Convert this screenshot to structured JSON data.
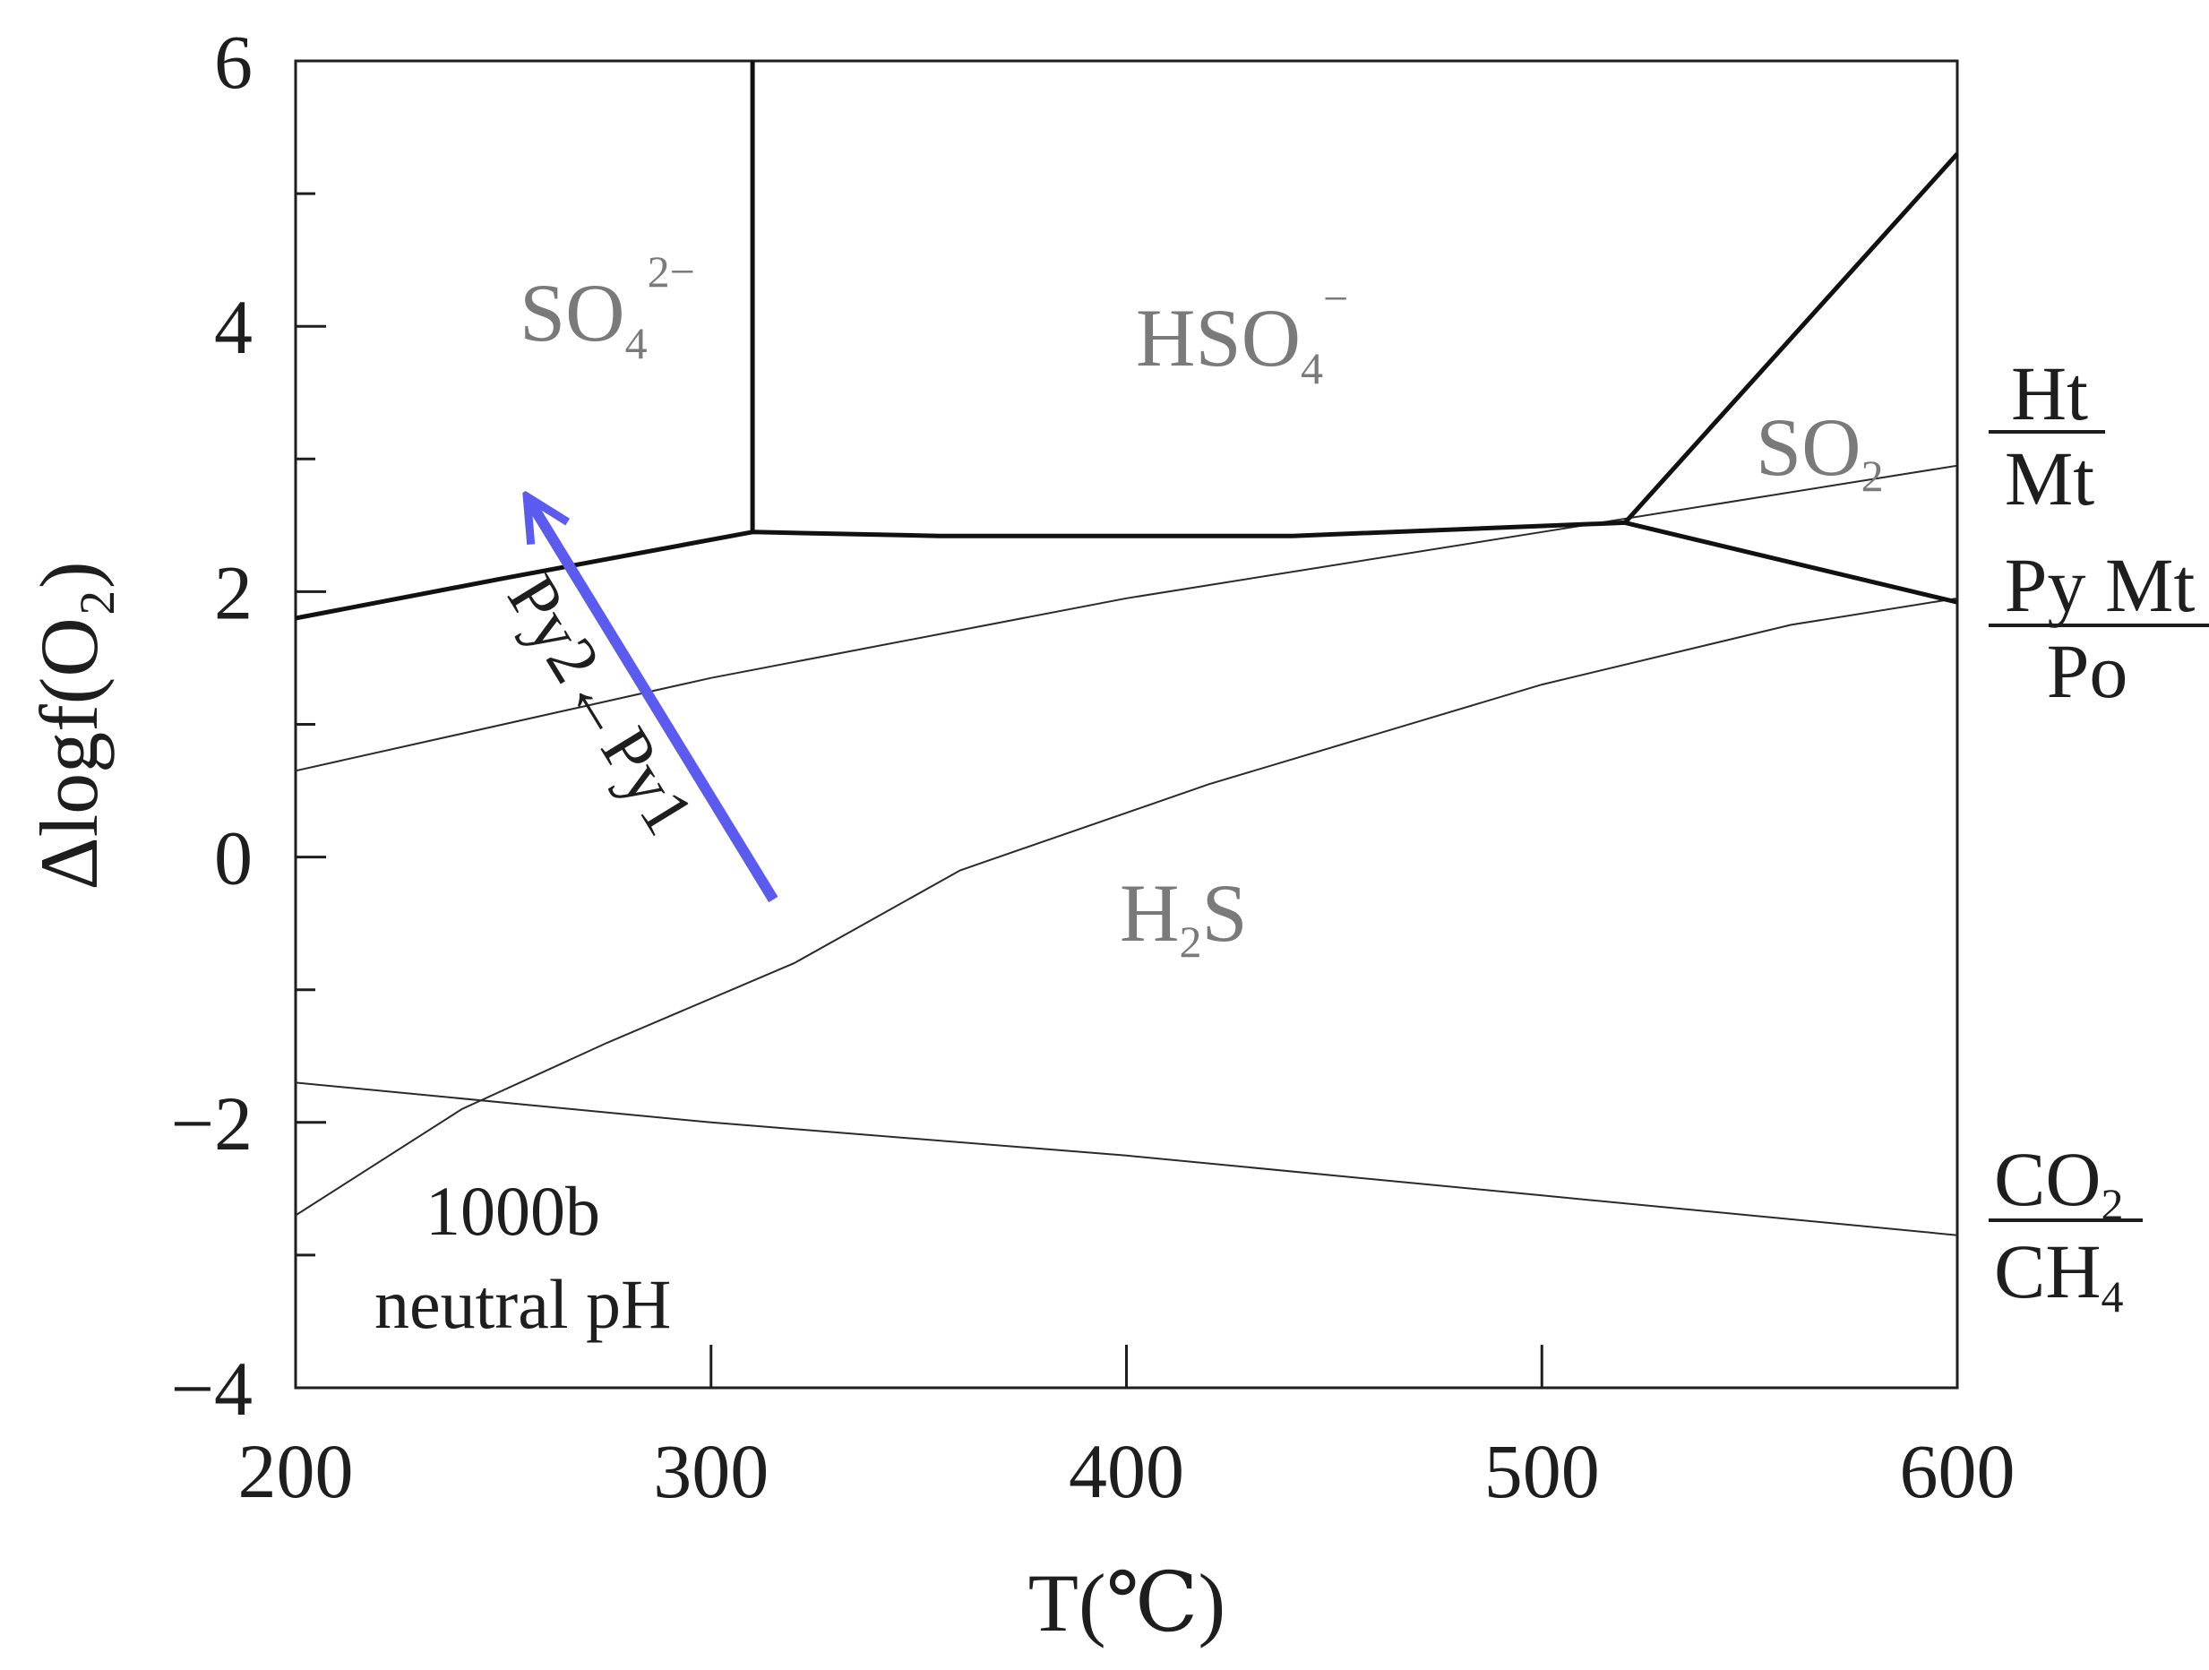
{
  "chart_data": {
    "type": "line",
    "title": "",
    "xlabel": "T(℃)",
    "ylabel": "Δlogf(O₂)",
    "xlim": [
      200,
      600
    ],
    "ylim": [
      -4,
      6
    ],
    "x_ticks": [
      200,
      300,
      400,
      500,
      600
    ],
    "y_ticks": [
      -4,
      -2,
      0,
      2,
      4,
      6
    ],
    "x_tick_labels": [
      "200",
      "300",
      "400",
      "500",
      "600"
    ],
    "y_tick_labels": [
      "−4",
      "−2",
      "0",
      "2",
      "4",
      "6"
    ],
    "grid": false,
    "boundaries_thick": [
      {
        "points": [
          [
            200,
            1.8
          ],
          [
            250,
            2.1
          ],
          [
            310,
            2.45
          ],
          [
            355,
            2.42
          ],
          [
            440,
            2.42
          ],
          [
            520,
            2.52
          ]
        ]
      },
      {
        "points": [
          [
            310,
            2.45
          ],
          [
            310,
            6.0
          ]
        ]
      },
      {
        "points": [
          [
            520,
            2.52
          ],
          [
            600,
            5.3
          ]
        ]
      },
      {
        "points": [
          [
            520,
            2.52
          ],
          [
            600,
            1.92
          ]
        ]
      }
    ],
    "buffer_lines": [
      {
        "points": [
          [
            200,
            0.65
          ],
          [
            300,
            1.35
          ],
          [
            400,
            1.95
          ],
          [
            500,
            2.45
          ],
          [
            600,
            2.95
          ]
        ]
      },
      {
        "points": [
          [
            200,
            -2.7
          ],
          [
            240,
            -1.9
          ],
          [
            275,
            -1.4
          ],
          [
            320,
            -0.8
          ],
          [
            360,
            -0.1
          ],
          [
            420,
            0.55
          ],
          [
            500,
            1.3
          ],
          [
            560,
            1.75
          ],
          [
            600,
            1.95
          ]
        ]
      },
      {
        "points": [
          [
            200,
            -1.7
          ],
          [
            300,
            -2.0
          ],
          [
            400,
            -2.25
          ],
          [
            500,
            -2.55
          ],
          [
            600,
            -2.85
          ]
        ]
      }
    ],
    "arrow": {
      "from": [
        315,
        -0.32
      ],
      "to": [
        256,
        2.7
      ],
      "color": "#5b5bef",
      "label": "Py2←Py1"
    },
    "region_labels": {
      "so4": {
        "main": "SO",
        "sub": "4",
        "sup": "2−"
      },
      "hso4": {
        "main": "HSO",
        "sub": "4",
        "sup": "−"
      },
      "so2": {
        "main": "SO",
        "sub": "2"
      },
      "h2s": {
        "pre": "H",
        "sub": "2",
        "post": "S"
      }
    },
    "buffer_labels": {
      "ht_mt": {
        "numerator": "Ht",
        "denominator": "Mt"
      },
      "py_mt_po": {
        "numerator": "Py Mt",
        "denominator": "Po"
      },
      "co2_ch4": {
        "num_main": "CO",
        "num_sub": "2",
        "den_main": "CH",
        "den_sub": "4"
      }
    },
    "annotation": {
      "line1": "1000b",
      "line2": "neutral pH"
    }
  }
}
